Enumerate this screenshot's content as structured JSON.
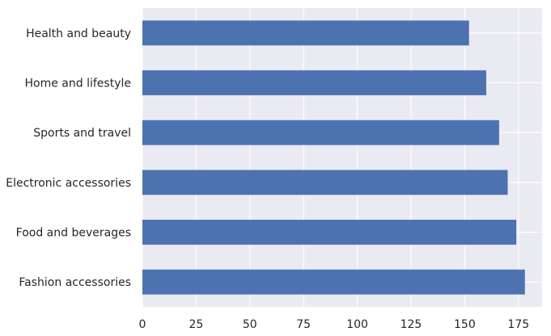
{
  "chart_data": {
    "type": "bar",
    "orientation": "horizontal",
    "categories": [
      "Fashion accessories",
      "Food and beverages",
      "Electronic accessories",
      "Sports and travel",
      "Home and lifestyle",
      "Health and beauty"
    ],
    "values": [
      178,
      174,
      170,
      166,
      160,
      152
    ],
    "xlim": [
      0,
      186
    ],
    "xticks": [
      0,
      25,
      50,
      75,
      100,
      125,
      150,
      175
    ],
    "grid": true,
    "title": "",
    "xlabel": "",
    "ylabel": "",
    "colors": {
      "bar": "#4c72b0",
      "plot_background": "#eaeaf2",
      "grid": "#ffffff",
      "text": "#262626"
    }
  }
}
